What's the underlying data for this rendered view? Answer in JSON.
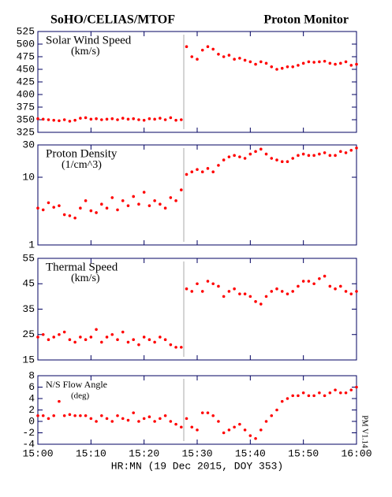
{
  "header": {
    "left": "SoHO/CELIAS/MTOF",
    "right": "Proton Monitor"
  },
  "version": "PM V1.14",
  "x_axis": {
    "xlabel": "HR:MN (19 Dec 2015, DOY 353)",
    "xlim": [
      0,
      60
    ],
    "xticks": [
      {
        "value": 0,
        "label": "15:00"
      },
      {
        "value": 10,
        "label": "15:10"
      },
      {
        "value": 20,
        "label": "15:20"
      },
      {
        "value": 30,
        "label": "15:30"
      },
      {
        "value": 40,
        "label": "15:40"
      },
      {
        "value": 50,
        "label": "15:50"
      },
      {
        "value": 60,
        "label": "16:00"
      }
    ],
    "x": [
      0,
      1,
      2,
      3,
      4,
      5,
      6,
      7,
      8,
      9,
      10,
      11,
      12,
      13,
      14,
      15,
      16,
      17,
      18,
      19,
      20,
      21,
      22,
      23,
      24,
      25,
      26,
      27,
      28,
      29,
      30,
      31,
      32,
      33,
      34,
      35,
      36,
      37,
      38,
      39,
      40,
      41,
      42,
      43,
      44,
      45,
      46,
      47,
      48,
      49,
      50,
      51,
      52,
      53,
      54,
      55,
      56,
      57,
      58,
      59,
      60
    ]
  },
  "chart_data": [
    {
      "type": "scatter",
      "title": "Solar Wind Speed",
      "subtitle": "(km/s)",
      "color": "#ff0000",
      "log": false,
      "ylim": [
        325,
        525
      ],
      "yticks": [
        325,
        350,
        375,
        400,
        425,
        450,
        475,
        500,
        525
      ],
      "values": [
        352,
        351,
        350,
        349,
        348,
        350,
        347,
        349,
        353,
        354,
        351,
        352,
        350,
        351,
        352,
        350,
        353,
        351,
        352,
        350,
        349,
        352,
        351,
        353,
        350,
        354,
        349,
        350,
        495,
        475,
        470,
        488,
        495,
        490,
        480,
        475,
        478,
        470,
        472,
        468,
        465,
        460,
        465,
        462,
        455,
        450,
        452,
        455,
        455,
        458,
        462,
        465,
        464,
        465,
        466,
        462,
        460,
        462,
        465,
        458,
        460
      ]
    },
    {
      "type": "scatter",
      "title": "Proton Density",
      "subtitle": "(1/cm^3)",
      "color": "#ff0000",
      "log": true,
      "ylim": [
        1,
        30
      ],
      "yticks": [
        1,
        10,
        30
      ],
      "values": [
        3.5,
        3.3,
        4.2,
        3.6,
        3.8,
        2.8,
        2.7,
        2.5,
        3.5,
        4.5,
        3.2,
        3.0,
        4.0,
        3.5,
        5.0,
        3.3,
        4.5,
        3.8,
        5.2,
        4.0,
        6.0,
        3.8,
        4.5,
        4.0,
        3.5,
        5.0,
        4.5,
        6.5,
        11,
        12,
        13,
        12,
        13.5,
        12,
        15,
        18,
        20,
        21,
        20,
        19,
        22,
        24,
        26,
        22,
        19,
        18,
        17,
        17,
        19,
        21,
        22,
        21,
        21,
        22,
        23,
        21,
        21,
        24,
        23,
        25,
        27
      ]
    },
    {
      "type": "scatter",
      "title": "Thermal Speed",
      "subtitle": "(km/s)",
      "color": "#ff0000",
      "log": false,
      "ylim": [
        15,
        55
      ],
      "yticks": [
        15,
        25,
        35,
        45,
        55
      ],
      "values": [
        24,
        25,
        23,
        24,
        25,
        26,
        23,
        22,
        24,
        23,
        24,
        27,
        22,
        24,
        25,
        23,
        26,
        22,
        23,
        21,
        24,
        23,
        22,
        24,
        23,
        21,
        20,
        20,
        43,
        42,
        45,
        42,
        46,
        45,
        44,
        40,
        42,
        43,
        41,
        41,
        40,
        38,
        37,
        40,
        42,
        43,
        42,
        41,
        42,
        44,
        46,
        46,
        45,
        47,
        48,
        44,
        43,
        44,
        42,
        41,
        42
      ]
    },
    {
      "type": "scatter",
      "title": "N/S Flow Angle",
      "subtitle": "(deg)",
      "color": "#ff0000",
      "log": false,
      "ylim": [
        -4,
        8
      ],
      "yticks": [
        -4,
        -2,
        0,
        2,
        4,
        6,
        8
      ],
      "values": [
        1,
        1,
        0.5,
        1,
        3.5,
        1,
        1.2,
        1,
        1,
        1,
        0.5,
        0,
        1,
        0.5,
        0,
        1,
        0.5,
        0.2,
        1.5,
        0,
        0.5,
        0.8,
        0,
        0.5,
        1,
        0,
        -0.5,
        -1,
        0.5,
        -1,
        -1.5,
        1.5,
        1.5,
        1,
        0,
        -2,
        -1.5,
        -1,
        -0.5,
        -1.5,
        -2.5,
        -3,
        -1.5,
        0,
        1,
        2,
        3.5,
        4,
        4.5,
        4.5,
        5,
        4.5,
        4.5,
        5,
        4.5,
        5,
        5.5,
        5,
        5,
        5.5,
        6
      ]
    }
  ]
}
